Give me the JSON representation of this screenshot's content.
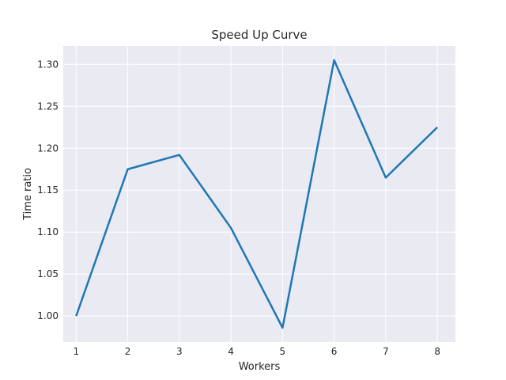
{
  "chart_data": {
    "type": "line",
    "title": "Speed Up Curve",
    "xlabel": "Workers",
    "ylabel": "Time ratio",
    "x": [
      1,
      2,
      3,
      4,
      5,
      6,
      7,
      8
    ],
    "series": [
      {
        "values": [
          1.0,
          1.175,
          1.192,
          1.105,
          0.986,
          1.305,
          1.165,
          1.225
        ],
        "color": "#1f77b4"
      }
    ],
    "xlim": [
      0.75,
      8.35
    ],
    "ylim": [
      0.969,
      1.322
    ],
    "xticks": [
      1,
      2,
      3,
      4,
      5,
      6,
      7,
      8
    ],
    "xtick_labels": [
      "1",
      "2",
      "3",
      "4",
      "5",
      "6",
      "7",
      "8"
    ],
    "yticks": [
      1.0,
      1.05,
      1.1,
      1.15,
      1.2,
      1.25,
      1.3
    ],
    "ytick_labels": [
      "1.00",
      "1.05",
      "1.10",
      "1.15",
      "1.20",
      "1.25",
      "1.30"
    ],
    "grid": true,
    "legend": "none",
    "background_color": "#eaeaf2",
    "grid_color": "#ffffff"
  }
}
